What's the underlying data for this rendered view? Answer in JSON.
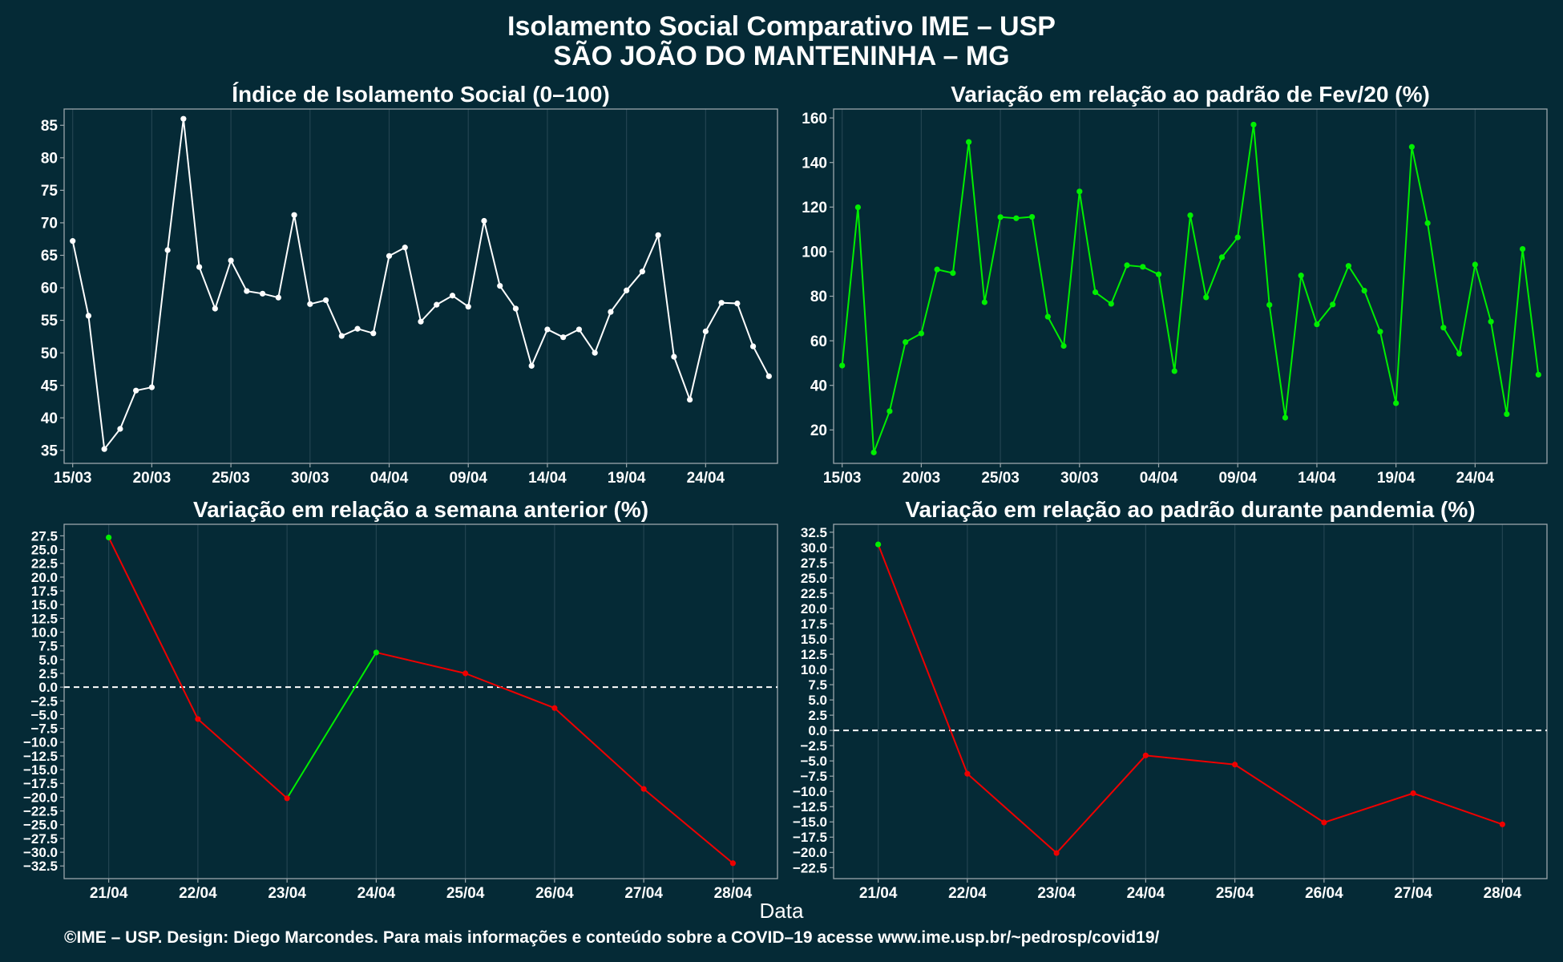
{
  "title": "Isolamento Social Comparativo IME – USP",
  "subtitle": "SÃO JOÃO DO MANTENINHA – MG",
  "x_axis_label": "Data",
  "footer": "©IME – USP. Design: Diego Marcondes. Para mais informações e conteúdo sobre a COVID–19 acesse www.ime.usp.br/~pedrosp/covid19/",
  "colors": {
    "background": "#052a36",
    "panel_border": "#9aa6ab",
    "grid": "#234451",
    "white_series": "#ffffff",
    "green": "#00ee00",
    "red": "#ee0000"
  },
  "chart_data": [
    {
      "type": "line",
      "title": "Índice de Isolamento Social (0–100)",
      "x_tick_labels": [
        "15/03",
        "20/03",
        "25/03",
        "30/03",
        "04/04",
        "09/04",
        "14/04",
        "19/04",
        "24/04"
      ],
      "y_ticks": [
        35,
        40,
        45,
        50,
        55,
        60,
        65,
        70,
        75,
        80,
        85
      ],
      "ylim": [
        33,
        87.5
      ],
      "series": [
        {
          "color": "#ffffff",
          "values": [
            67.2,
            55.7,
            35.2,
            38.3,
            44.2,
            44.7,
            65.8,
            86.0,
            63.2,
            56.8,
            64.2,
            59.5,
            59.1,
            58.5,
            71.2,
            57.5,
            58.1,
            52.6,
            53.7,
            53.0,
            64.9,
            66.2,
            54.8,
            57.4,
            58.8,
            57.1,
            70.3,
            60.3,
            56.8,
            48.0,
            53.6,
            52.4,
            53.6,
            50.0,
            56.3,
            59.6,
            62.5,
            68.1,
            49.4,
            42.8,
            53.3,
            57.7,
            57.6,
            51.0,
            46.4
          ]
        }
      ],
      "grid": true
    },
    {
      "type": "line",
      "title": "Variação em relação ao padrão de Fev/20 (%)",
      "x_tick_labels": [
        "15/03",
        "20/03",
        "25/03",
        "30/03",
        "04/04",
        "09/04",
        "14/04",
        "19/04",
        "24/04"
      ],
      "y_ticks": [
        20,
        40,
        60,
        80,
        100,
        120,
        140,
        160
      ],
      "ylim": [
        5,
        164
      ],
      "series": [
        {
          "color": "#00ee00",
          "values": [
            48.9,
            119.9,
            9.9,
            28.4,
            59.4,
            63.3,
            92.0,
            90.4,
            149.2,
            77.3,
            115.5,
            115.0,
            115.6,
            70.8,
            57.7,
            127.0,
            81.8,
            76.6,
            93.9,
            93.2,
            89.8,
            46.4,
            116.3,
            79.5,
            97.5,
            106.4,
            157.0,
            76.1,
            25.5,
            89.3,
            67.4,
            76.3,
            93.6,
            82.5,
            64.1,
            32.0,
            147.0,
            112.8,
            65.9,
            54.2,
            94.2,
            68.6,
            27.1,
            101.2,
            44.8
          ]
        }
      ],
      "grid": true
    },
    {
      "type": "line",
      "title": "Variação em relação a semana anterior (%)",
      "categories": [
        "21/04",
        "22/04",
        "23/04",
        "24/04",
        "25/04",
        "26/04",
        "27/04",
        "28/04"
      ],
      "y_ticks": [
        -32.5,
        -30,
        -27.5,
        -25,
        -22.5,
        -20,
        -17.5,
        -15,
        -12.5,
        -10,
        -7.5,
        -5,
        -2.5,
        0,
        2.5,
        5,
        7.5,
        10,
        12.5,
        15,
        17.5,
        20,
        22.5,
        25,
        27.5
      ],
      "ylim": [
        -34.8,
        29.6
      ],
      "values": [
        27.2,
        -5.8,
        -20.2,
        6.3,
        2.5,
        -3.8,
        -18.5,
        -32.0
      ],
      "reference_line": 0,
      "colors_rule": "green when rising, red when falling",
      "grid": true
    },
    {
      "type": "line",
      "title": "Variação em relação ao padrão durante pandemia (%)",
      "categories": [
        "21/04",
        "22/04",
        "23/04",
        "24/04",
        "25/04",
        "26/04",
        "27/04",
        "28/04"
      ],
      "y_ticks": [
        -22.5,
        -20,
        -17.5,
        -15,
        -12.5,
        -10,
        -7.5,
        -5,
        -2.5,
        0,
        2.5,
        5,
        7.5,
        10,
        12.5,
        15,
        17.5,
        20,
        22.5,
        25,
        27.5,
        30,
        32.5
      ],
      "ylim": [
        -24.3,
        33.8
      ],
      "values": [
        30.5,
        -7.1,
        -20.1,
        -4.1,
        -5.6,
        -15.1,
        -10.3,
        -15.4
      ],
      "reference_line": 0,
      "colors_rule": "green when positive, red when negative",
      "grid": true
    }
  ]
}
